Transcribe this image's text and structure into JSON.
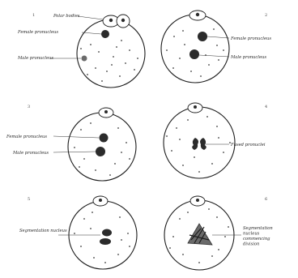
{
  "panels": [
    {
      "number": "1",
      "labels": [
        {
          "text": "Polar bodies"
        },
        {
          "text": "Female pronucleus"
        },
        {
          "text": "Male pronucleus"
        }
      ]
    },
    {
      "number": "2",
      "labels": [
        {
          "text": "Female pronucleus"
        },
        {
          "text": "Male pronucleus"
        }
      ]
    },
    {
      "number": "3",
      "labels": [
        {
          "text": "Female pronucleus"
        },
        {
          "text": "Male pronucleus"
        }
      ]
    },
    {
      "number": "4",
      "labels": [
        {
          "text": "Fused pronuclei"
        }
      ]
    },
    {
      "number": "5",
      "labels": [
        {
          "text": "Segmentation nucleus"
        }
      ]
    },
    {
      "number": "6",
      "labels": [
        {
          "text": "Segmentation nucleus commencing division"
        }
      ]
    }
  ],
  "colors": {
    "ink": "#1c1c1c",
    "paper": "#ffffff"
  }
}
